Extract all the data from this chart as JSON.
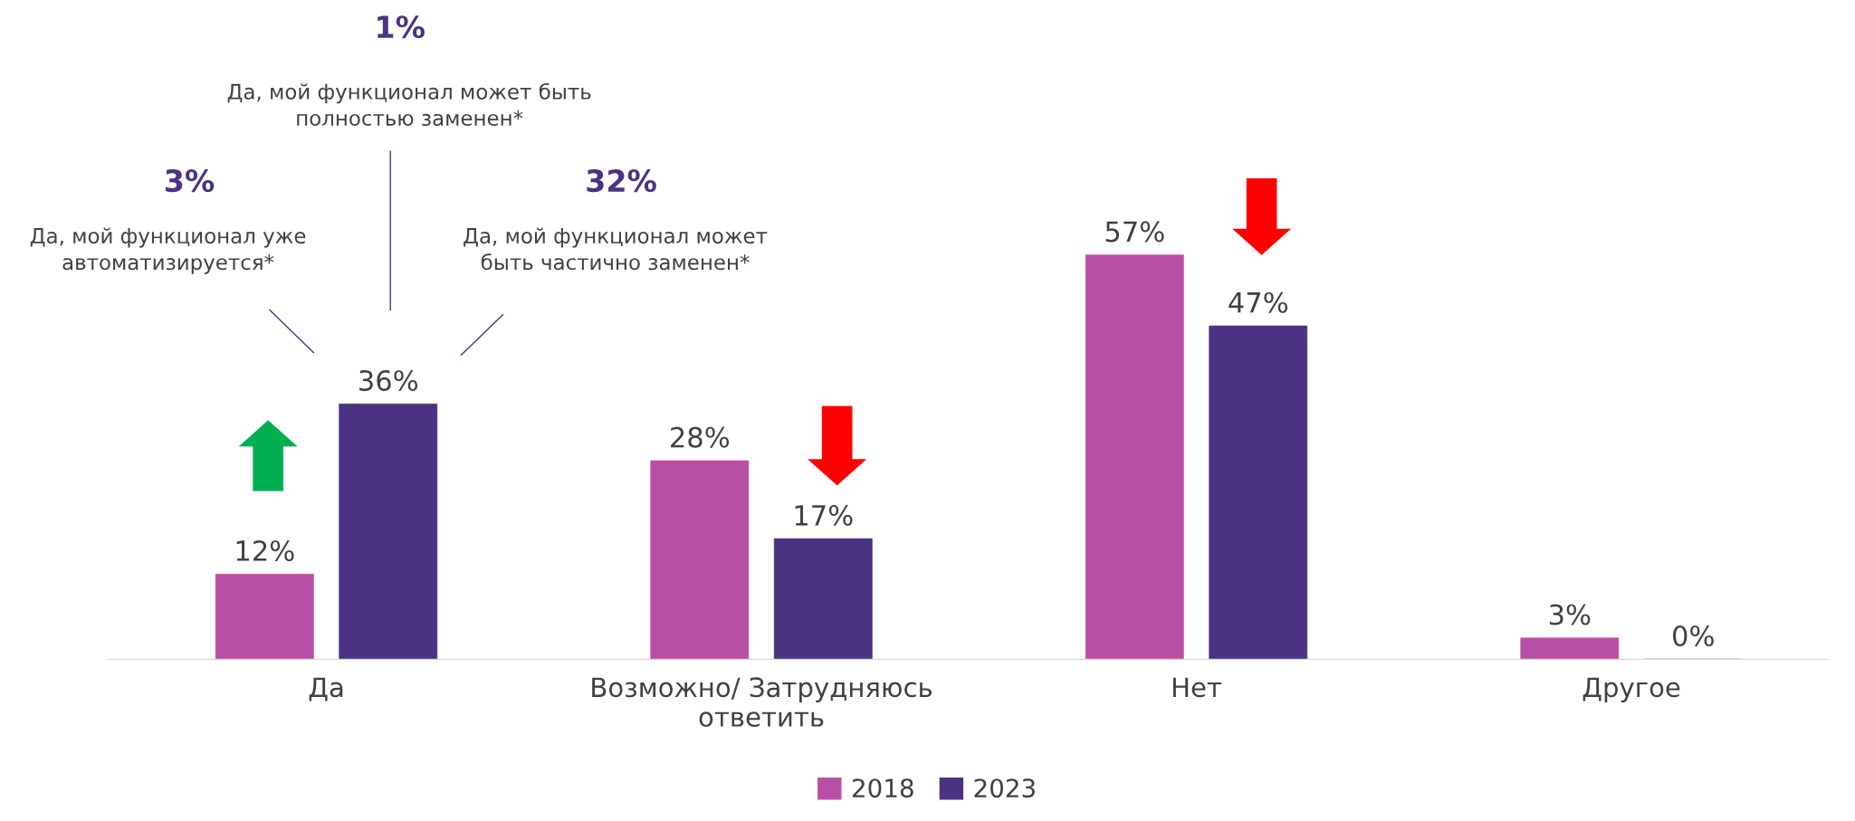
{
  "chart_data": {
    "type": "bar",
    "categories": [
      "Да",
      "Возможно/ Затрудняюсь\nответить",
      "Нет",
      "Другое"
    ],
    "series": [
      {
        "name": "2018",
        "color": "#b94fa5",
        "values": [
          12,
          28,
          57,
          3
        ],
        "value_labels": [
          "12%",
          "28%",
          "57%",
          "3%"
        ]
      },
      {
        "name": "2023",
        "color": "#4b3282",
        "values": [
          36,
          17,
          47,
          0
        ],
        "value_labels": [
          "36%",
          "17%",
          "47%",
          "0%"
        ]
      }
    ],
    "legend": "bottom",
    "grid": false,
    "annotations": [
      "3%",
      "Да, мой функционал уже\nавтоматизируется*",
      "1%",
      "Да, мой функционал может быть\nполностью заменен*",
      "32%",
      "Да, мой функционал может\nбыть частично заменен*"
    ]
  }
}
